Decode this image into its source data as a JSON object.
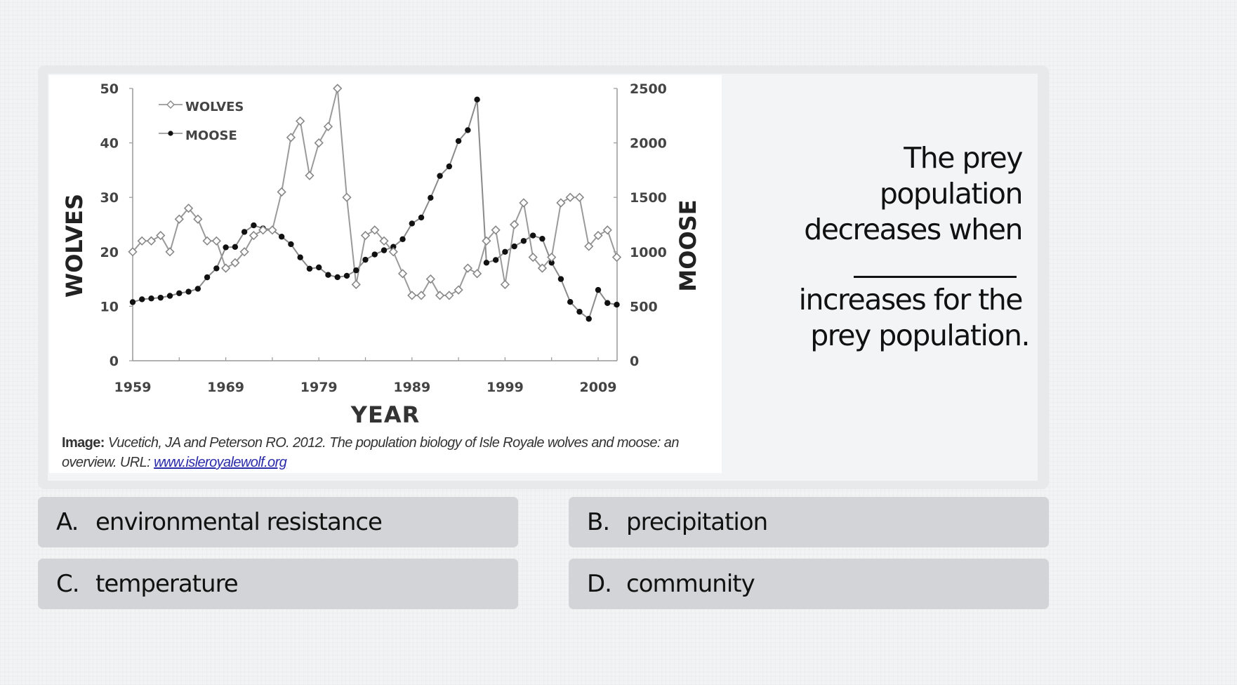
{
  "question": {
    "line1": "The prey",
    "line2": "population",
    "line3": "decreases when",
    "line4": "increases for the",
    "line5": "prey population."
  },
  "answers": [
    {
      "letter": "A.",
      "text": "environmental resistance"
    },
    {
      "letter": "B.",
      "text": "precipitation"
    },
    {
      "letter": "C.",
      "text": "temperature"
    },
    {
      "letter": "D.",
      "text": "community"
    }
  ],
  "caption": {
    "lead": "Image:",
    "text": " Vucetich, JA and Peterson RO. 2012. The population biology of Isle Royale wolves and moose: an overview. URL: ",
    "link": "www.isleroyalewolf.org"
  },
  "chart_data": {
    "type": "line",
    "title": "",
    "xlabel": "YEAR",
    "ylabel": "WOLVES",
    "y2label": "MOOSE",
    "xlim": [
      1959,
      2011
    ],
    "ylim": [
      0,
      50
    ],
    "y2lim": [
      0,
      2500
    ],
    "x_ticks": [
      1959,
      1969,
      1979,
      1989,
      1999,
      2009
    ],
    "y_ticks": [
      0,
      10,
      20,
      30,
      40,
      50
    ],
    "y2_ticks": [
      0,
      500,
      1000,
      1500,
      2000,
      2500
    ],
    "legend": {
      "position": "top-left",
      "entries": [
        "WOLVES",
        "MOOSE"
      ]
    },
    "grid": false,
    "x": [
      1959,
      1960,
      1961,
      1962,
      1963,
      1964,
      1965,
      1966,
      1967,
      1968,
      1969,
      1970,
      1971,
      1972,
      1973,
      1974,
      1975,
      1976,
      1977,
      1978,
      1979,
      1980,
      1981,
      1982,
      1983,
      1984,
      1985,
      1986,
      1987,
      1988,
      1989,
      1990,
      1991,
      1992,
      1993,
      1994,
      1995,
      1996,
      1997,
      1998,
      1999,
      2000,
      2001,
      2002,
      2003,
      2004,
      2005,
      2006,
      2007,
      2008,
      2009,
      2010,
      2011
    ],
    "series": [
      {
        "name": "WOLVES",
        "axis": "left",
        "marker": "open-diamond",
        "values": [
          20,
          22,
          22,
          23,
          20,
          26,
          28,
          26,
          22,
          22,
          17,
          18,
          20,
          23,
          24,
          24,
          31,
          41,
          44,
          34,
          40,
          43,
          50,
          30,
          14,
          23,
          24,
          22,
          20,
          16,
          12,
          12,
          15,
          12,
          12,
          13,
          17,
          16,
          22,
          24,
          14,
          25,
          29,
          19,
          17,
          19,
          29,
          30,
          30,
          21,
          23,
          24,
          19
        ]
      },
      {
        "name": "MOOSE",
        "axis": "right",
        "marker": "filled-circle",
        "values": [
          538,
          564,
          572,
          579,
          596,
          620,
          634,
          661,
          766,
          848,
          1041,
          1045,
          1183,
          1243,
          1215,
          1203,
          1139,
          1070,
          949,
          845,
          857,
          788,
          767,
          780,
          830,
          927,
          976,
          1014,
          1046,
          1116,
          1260,
          1315,
          1496,
          1697,
          1784,
          2017,
          2117,
          2398,
          900,
          925,
          1000,
          1050,
          1100,
          1150,
          1120,
          900,
          750,
          540,
          450,
          385,
          650,
          530,
          515
        ]
      }
    ]
  }
}
